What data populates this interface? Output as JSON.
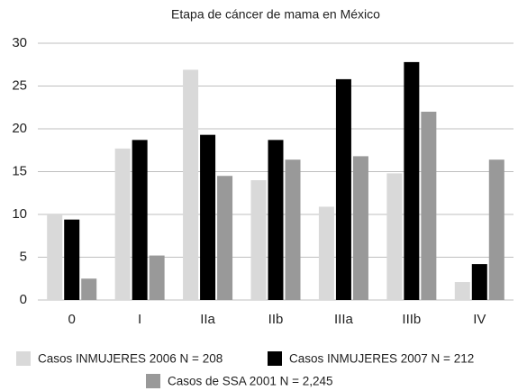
{
  "chart_data": {
    "type": "bar",
    "title": "Etapa de cáncer de mama en México",
    "categories": [
      "0",
      "I",
      "IIa",
      "IIb",
      "IIIa",
      "IIIb",
      "IV"
    ],
    "series": [
      {
        "name": "Casos INMUJERES 2006 N = 208",
        "color": "#d9d9d9",
        "values": [
          10.0,
          17.7,
          26.9,
          14.0,
          10.9,
          14.8,
          2.1
        ]
      },
      {
        "name": "Casos INMUJERES 2007 N = 212",
        "color": "#000000",
        "values": [
          9.4,
          18.7,
          19.3,
          18.7,
          25.8,
          27.8,
          4.2
        ]
      },
      {
        "name": "Casos de SSA 2001 N = 2,245",
        "color": "#999999",
        "values": [
          2.5,
          5.2,
          14.5,
          16.4,
          16.8,
          22.0,
          16.4
        ]
      }
    ],
    "ylim": [
      0,
      30
    ],
    "yticks": [
      0,
      5,
      10,
      15,
      20,
      25,
      30
    ],
    "grid": true
  }
}
